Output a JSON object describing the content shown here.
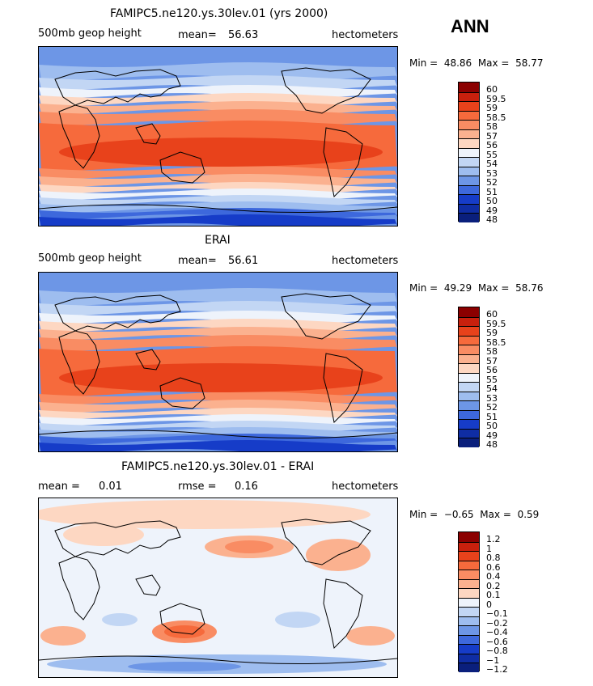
{
  "season": "ANN",
  "panels": [
    {
      "title": "FAMIPC5.ne120.ys.30lev.01 (yrs 2000)",
      "left_label": "500mb geop height",
      "mid_label": "mean=",
      "mid_value": "56.63",
      "units": "hectometers",
      "min_label": "Min =",
      "min_value": "48.86",
      "max_label": "Max =",
      "max_value": "58.77",
      "field": "height",
      "colorbar": {
        "colors": [
          "#8b0000",
          "#c8200d",
          "#e8421b",
          "#f66a3c",
          "#f98c63",
          "#fbb18f",
          "#fdd7c2",
          "#eef3fb",
          "#c2d6f4",
          "#9ebdef",
          "#6d96e6",
          "#3d68dc",
          "#163cc8",
          "#0f2da4",
          "#0a1f7c"
        ],
        "labels": [
          "60",
          "59.5",
          "59",
          "58.5",
          "58",
          "57",
          "56",
          "55",
          "54",
          "53",
          "52",
          "51",
          "50",
          "49",
          "48"
        ]
      }
    },
    {
      "title": "ERAI",
      "left_label": "500mb geop height",
      "mid_label": "mean=",
      "mid_value": "56.61",
      "units": "hectometers",
      "min_label": "Min =",
      "min_value": "49.29",
      "max_label": "Max =",
      "max_value": "58.76",
      "field": "height",
      "colorbar": {
        "colors": [
          "#8b0000",
          "#c8200d",
          "#e8421b",
          "#f66a3c",
          "#f98c63",
          "#fbb18f",
          "#fdd7c2",
          "#eef3fb",
          "#c2d6f4",
          "#9ebdef",
          "#6d96e6",
          "#3d68dc",
          "#163cc8",
          "#0f2da4",
          "#0a1f7c"
        ],
        "labels": [
          "60",
          "59.5",
          "59",
          "58.5",
          "58",
          "57",
          "56",
          "55",
          "54",
          "53",
          "52",
          "51",
          "50",
          "49",
          "48"
        ]
      }
    },
    {
      "title": "FAMIPC5.ne120.ys.30lev.01 - ERAI",
      "left_label": "mean =",
      "left_value": "0.01",
      "mid_label": "rmse =",
      "mid_value": "0.16",
      "units": "hectometers",
      "min_label": "Min =",
      "min_value": "−0.65",
      "max_label": "Max =",
      "max_value": "0.59",
      "field": "diff",
      "colorbar": {
        "colors": [
          "#8b0000",
          "#c8200d",
          "#e8421b",
          "#f66a3c",
          "#f98c63",
          "#fbb18f",
          "#fdd7c2",
          "#eef3fb",
          "#c2d6f4",
          "#9ebdef",
          "#6d96e6",
          "#3d68dc",
          "#163cc8",
          "#0f2da4",
          "#0a1f7c"
        ],
        "labels": [
          "1.2",
          "1",
          "0.8",
          "0.6",
          "0.4",
          "0.2",
          "0.1",
          "0",
          "−0.1",
          "−0.2",
          "−0.4",
          "−0.6",
          "−0.8",
          "−1",
          "−1.2"
        ]
      }
    }
  ]
}
